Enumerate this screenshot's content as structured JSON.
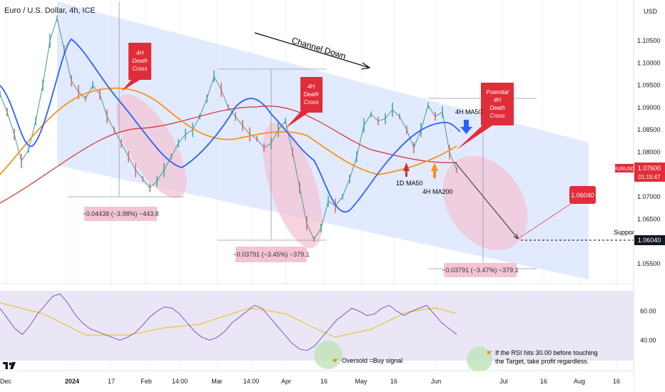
{
  "header": {
    "title": "Euro / U.S. Dollar, 4h, ICE",
    "currency": "USD"
  },
  "chart_data": [
    {
      "type": "line",
      "symbol": "EURUSD",
      "ylim": [
        1.0515,
        1.1125
      ],
      "y_ticks": [
        1.055,
        1.06,
        1.065,
        1.07,
        1.075,
        1.08,
        1.085,
        1.09,
        1.095,
        1.1,
        1.105
      ],
      "y_tick_labels": [
        "1.05500",
        "1.06000",
        "1.06500",
        "1.07000",
        "1.07500",
        "1.08000",
        "1.08500",
        "1.09000",
        "1.09500",
        "1.10000",
        "1.10500"
      ],
      "x_ticks": [
        "Dec",
        "2024",
        "17",
        "Feb",
        "14:00",
        "Mar",
        "14:00",
        "Apr",
        "16",
        "May",
        "16",
        "Jun",
        "Jul",
        "16",
        "Aug",
        "16"
      ],
      "last_price": {
        "label": "EURUSD",
        "value": "1.07600",
        "countdown": "01:15:47"
      },
      "support": {
        "label": "Support",
        "value": "1.06040"
      },
      "target_label": "1.06040",
      "series": [
        {
          "name": "4H MA50",
          "color": "#2962ff"
        },
        {
          "name": "4H MA200",
          "color": "#f7931a"
        },
        {
          "name": "1D MA50",
          "color": "#d32f2f"
        }
      ],
      "price_path": [
        1.093,
        1.089,
        1.084,
        1.078,
        1.0805,
        1.087,
        1.095,
        1.105,
        1.11,
        1.103,
        1.096,
        1.0935,
        1.092,
        1.095,
        1.093,
        1.088,
        1.085,
        1.082,
        1.079,
        1.076,
        1.074,
        1.072,
        1.0735,
        1.076,
        1.079,
        1.082,
        1.084,
        1.085,
        1.088,
        1.092,
        1.097,
        1.094,
        1.09,
        1.088,
        1.086,
        1.084,
        1.083,
        1.081,
        1.082,
        1.085,
        1.087,
        1.08,
        1.072,
        1.064,
        1.0605,
        1.063,
        1.069,
        1.068,
        1.07,
        1.074,
        1.079,
        1.086,
        1.0885,
        1.087,
        1.0875,
        1.0895,
        1.088,
        1.085,
        1.081,
        1.085,
        1.0905,
        1.088,
        1.089,
        1.08,
        1.076
      ],
      "annotations": {
        "death_cross_1": [
          "4H",
          "Death",
          "Cross"
        ],
        "death_cross_2": [
          "4H",
          "Death",
          "Cross"
        ],
        "potential_cross": [
          "Potential",
          "4H",
          "Death",
          "Cross"
        ],
        "channel_down": "Channel Down",
        "ma50_label": "4H MA50",
        "d1_ma50_label": "1D MA50",
        "ma200_label": "4H MA200",
        "measure_1": "−0.04438 (−3.98%) −443.8",
        "measure_2": "−0.03791 (−3.45%) −379.1",
        "measure_3": "−0.03791 (−3.47%) −379.1"
      }
    },
    {
      "type": "line",
      "indicator": "RSI",
      "y_ticks": [
        40,
        60
      ],
      "y_tick_labels": [
        "40.00",
        "60.00"
      ],
      "ylim": [
        26,
        74
      ],
      "rsi_path": [
        62,
        55,
        48,
        44,
        50,
        58,
        64,
        70,
        72,
        66,
        58,
        52,
        48,
        46,
        44,
        42,
        40,
        42,
        45,
        50,
        56,
        60,
        63,
        62,
        58,
        52,
        46,
        42,
        40,
        42,
        46,
        52,
        56,
        60,
        64,
        62,
        56,
        50,
        44,
        38,
        34,
        33,
        36,
        42,
        48,
        54,
        58,
        62,
        60,
        57,
        58,
        62,
        64,
        60,
        57,
        60,
        62,
        64,
        58,
        52,
        48,
        44
      ],
      "annotations": {
        "oversold": "Oversold =Buy signal",
        "rsi_note_1": "If the RSI hits 30.00 before touching",
        "rsi_note_2": "the Target, take profit regardless."
      }
    }
  ]
}
